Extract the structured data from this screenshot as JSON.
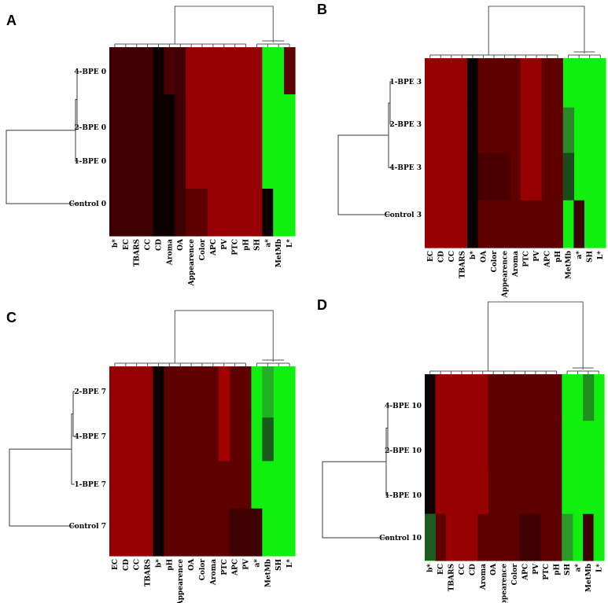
{
  "chart_data": [
    {
      "type": "heatmap",
      "panel_label": "A",
      "rows": [
        "4-BPE 0",
        "2-BPE 0",
        "1-BPE 0",
        "Control 0"
      ],
      "columns": [
        "b*",
        "EC",
        "TBARS",
        "CC",
        "CD",
        "Aroma",
        "OA",
        "Appearence",
        "Color",
        "APC",
        "PV",
        "PTC",
        "pH",
        "SH",
        "a*",
        "MetMb",
        "L*"
      ],
      "colors": {
        "black": "#0b0000",
        "dark": "#3e0000",
        "mid": "#5e0000",
        "red": "#960000",
        "green": "#10ef10"
      }
    },
    {
      "type": "heatmap",
      "panel_label": "B",
      "rows": [
        "1-BPE 3",
        "2-BPE 3",
        "4-BPE 3",
        "Control 3"
      ],
      "columns": [
        "EC",
        "CD",
        "CC",
        "TBARS",
        "b*",
        "OA",
        "Color",
        "Appearence",
        "Aroma",
        "PTC",
        "PV",
        "APC",
        "pH",
        "MetMb",
        "a*",
        "SH",
        "L*"
      ]
    },
    {
      "type": "heatmap",
      "panel_label": "C",
      "rows": [
        "2-BPE 7",
        "4-BPE 7",
        "1-BPE 7",
        "Control 7"
      ],
      "columns": [
        "EC",
        "CD",
        "CC",
        "TBARS",
        "b*",
        "pH",
        "Appearence",
        "OA",
        "Color",
        "Aroma",
        "PTC",
        "APC",
        "PV",
        "a*",
        "MetMb",
        "SH",
        "L*"
      ]
    },
    {
      "type": "heatmap",
      "panel_label": "D",
      "rows": [
        "4-BPE 10",
        "2-BPE 10",
        "1-BPE 10",
        "Control 10"
      ],
      "columns": [
        "b*",
        "EC",
        "TBARS",
        "CC",
        "CD",
        "Aroma",
        "OA",
        "Appearence",
        "Color",
        "APC",
        "PV",
        "PTC",
        "pH",
        "SH",
        "a*",
        "MetMb",
        "L*"
      ]
    }
  ]
}
